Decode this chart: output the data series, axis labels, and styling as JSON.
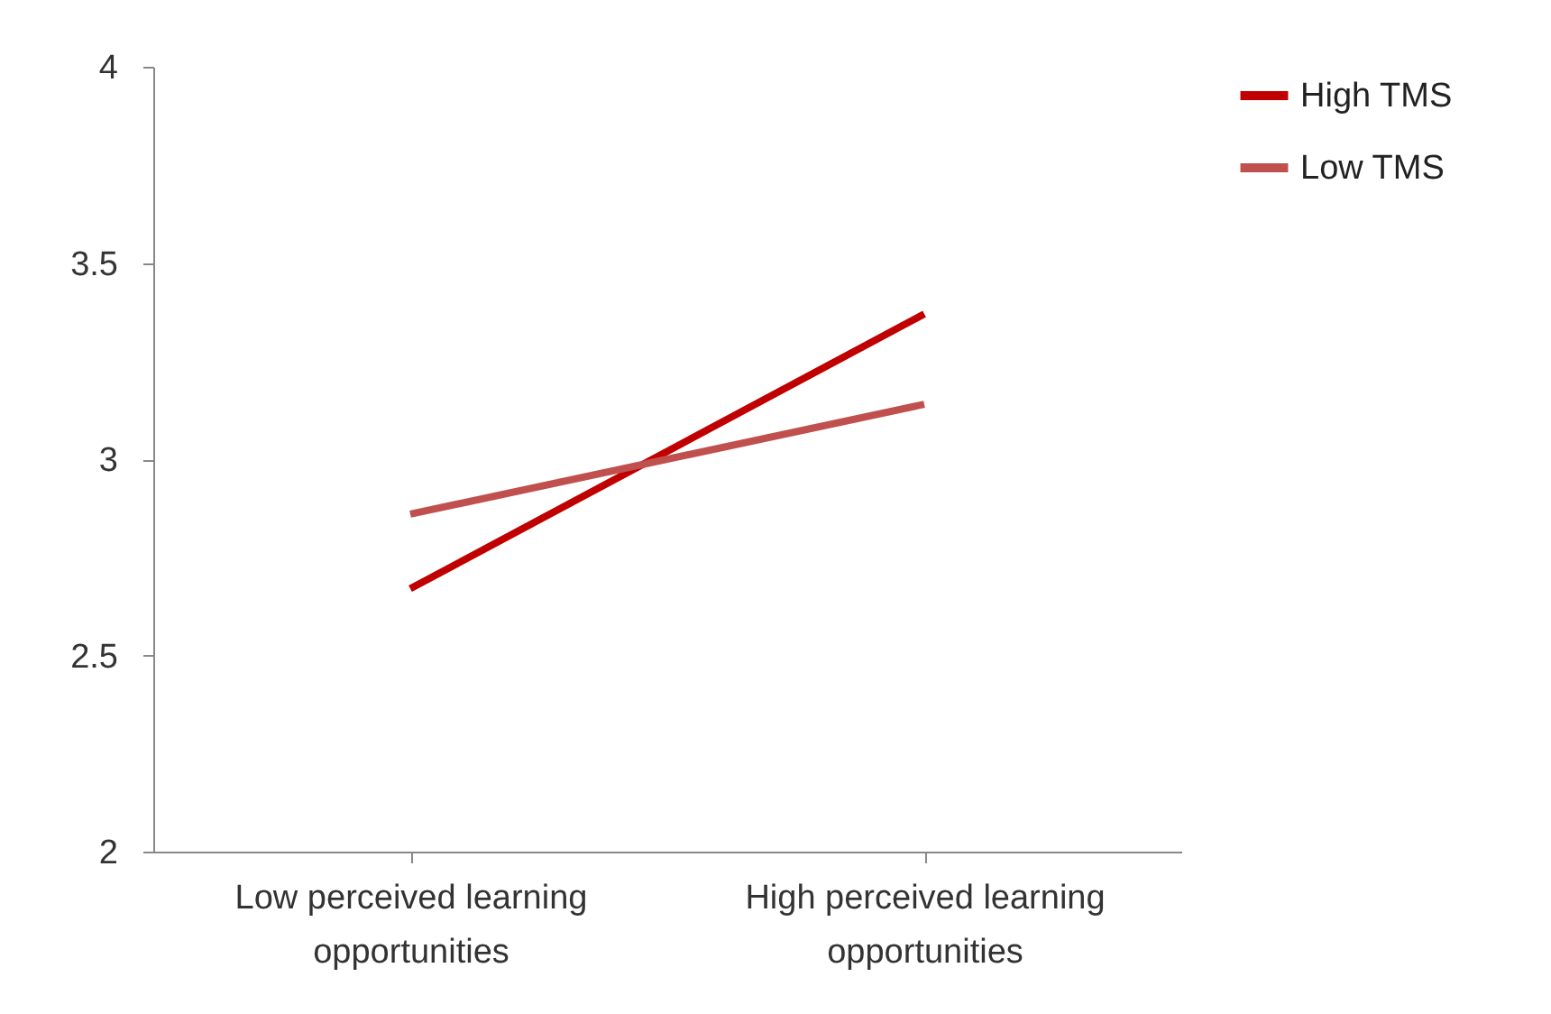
{
  "chart_data": {
    "type": "line",
    "categories": [
      "Low perceived learning opportunities",
      "High perceived learning opportunities"
    ],
    "series": [
      {
        "name": "High TMS",
        "color": "#c00000",
        "values": [
          2.67,
          3.37
        ]
      },
      {
        "name": "Low TMS",
        "color": "#c0504d",
        "values": [
          2.86,
          3.14
        ]
      }
    ],
    "ylim": [
      2,
      4
    ],
    "yticks": [
      2,
      2.5,
      3,
      3.5,
      4
    ],
    "grid": false,
    "legend": "right",
    "marker": "none",
    "line_style": "solid"
  }
}
